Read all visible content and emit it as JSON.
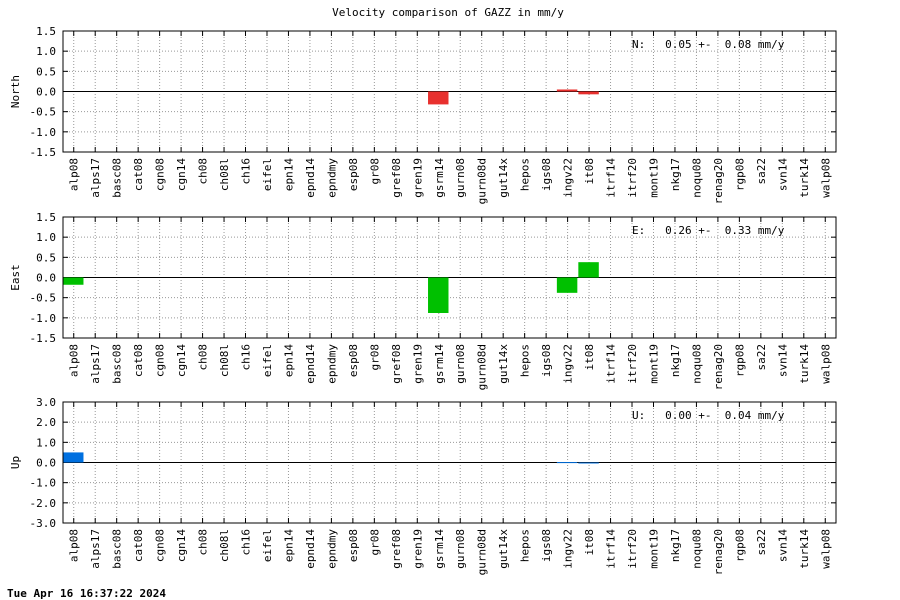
{
  "title": "Velocity comparison of GAZZ in mm/y",
  "timestamp": "Tue Apr 16 16:37:22 2024",
  "chart_data": [
    {
      "type": "bar",
      "ylabel": "North",
      "annotation": "N:   0.05 +-  0.08 mm/y",
      "color": "#e8302e",
      "categories": [
        "alp08",
        "alps17",
        "basc08",
        "cat08",
        "cgn08",
        "cgn14",
        "ch08",
        "ch08l",
        "ch16",
        "eifel",
        "epn14",
        "epnd14",
        "epndmy",
        "esp08",
        "gr08",
        "gref08",
        "gren19",
        "gsrm14",
        "gurn08",
        "gurn08d",
        "gut14x",
        "hepos",
        "igs08",
        "ingv22",
        "it08",
        "itrf14",
        "itrf20",
        "mont19",
        "nkg17",
        "noqu08",
        "renag20",
        "rgp08",
        "sa22",
        "svn14",
        "turk14",
        "walp08"
      ],
      "values": [
        null,
        null,
        null,
        null,
        null,
        null,
        null,
        null,
        null,
        null,
        null,
        null,
        null,
        null,
        null,
        null,
        null,
        -0.32,
        null,
        null,
        null,
        null,
        null,
        0.05,
        -0.07,
        null,
        null,
        null,
        null,
        null,
        null,
        null,
        null,
        null,
        null,
        null
      ],
      "ylim": [
        -1.5,
        1.5
      ],
      "yticks": [
        -1.5,
        {
          "value": -1.0,
          "label": "-1.0"
        },
        -0.5,
        {
          "value": 0,
          "label": "0.0"
        },
        0.5,
        {
          "value": 1.0,
          "label": "1.0"
        },
        1.5
      ],
      "grid": true
    },
    {
      "type": "bar",
      "ylabel": "East",
      "annotation": "E:   0.26 +-  0.33 mm/y",
      "color": "#00c000",
      "categories": [
        "alp08",
        "alps17",
        "basc08",
        "cat08",
        "cgn08",
        "cgn14",
        "ch08",
        "ch08l",
        "ch16",
        "eifel",
        "epn14",
        "epnd14",
        "epndmy",
        "esp08",
        "gr08",
        "gref08",
        "gren19",
        "gsrm14",
        "gurn08",
        "gurn08d",
        "gut14x",
        "hepos",
        "igs08",
        "ingv22",
        "it08",
        "itrf14",
        "itrf20",
        "mont19",
        "nkg17",
        "noqu08",
        "renag20",
        "rgp08",
        "sa22",
        "svn14",
        "turk14",
        "walp08"
      ],
      "values": [
        -0.18,
        null,
        null,
        null,
        null,
        null,
        null,
        null,
        null,
        null,
        null,
        null,
        null,
        null,
        null,
        null,
        null,
        -0.88,
        null,
        null,
        null,
        null,
        null,
        -0.38,
        0.38,
        null,
        null,
        null,
        null,
        null,
        null,
        null,
        null,
        null,
        null,
        null
      ],
      "ylim": [
        -1.5,
        1.5
      ],
      "yticks": [
        -1.5,
        {
          "value": -1.0,
          "label": "-1.0"
        },
        -0.5,
        {
          "value": 0,
          "label": "0.0"
        },
        0.5,
        {
          "value": 1.0,
          "label": "1.0"
        },
        1.5
      ],
      "grid": true
    },
    {
      "type": "bar",
      "ylabel": "Up",
      "annotation": "U:   0.00 +-  0.04 mm/y",
      "color": "#0070e0",
      "categories": [
        "alp08",
        "alps17",
        "basc08",
        "cat08",
        "cgn08",
        "cgn14",
        "ch08",
        "ch08l",
        "ch16",
        "eifel",
        "epn14",
        "epnd14",
        "epndmy",
        "esp08",
        "gr08",
        "gref08",
        "gren19",
        "gsrm14",
        "gurn08",
        "gurn08d",
        "gut14x",
        "hepos",
        "igs08",
        "ingv22",
        "it08",
        "itrf14",
        "itrf20",
        "mont19",
        "nkg17",
        "noqu08",
        "renag20",
        "rgp08",
        "sa22",
        "svn14",
        "turk14",
        "walp08"
      ],
      "values": [
        0.5,
        null,
        null,
        null,
        null,
        null,
        null,
        null,
        null,
        null,
        null,
        null,
        null,
        null,
        null,
        null,
        null,
        null,
        null,
        null,
        null,
        null,
        null,
        0.02,
        -0.04,
        null,
        null,
        null,
        null,
        null,
        null,
        null,
        null,
        null,
        null,
        null
      ],
      "ylim": [
        -3,
        3
      ],
      "yticks": [
        {
          "value": -3,
          "label": "-3.0"
        },
        {
          "value": -2,
          "label": "-2.0"
        },
        {
          "value": -1,
          "label": "-1.0"
        },
        {
          "value": 0,
          "label": "0.0"
        },
        {
          "value": 1,
          "label": "1.0"
        },
        {
          "value": 2,
          "label": "2.0"
        },
        {
          "value": 3,
          "label": "3.0"
        }
      ],
      "grid": true
    }
  ]
}
